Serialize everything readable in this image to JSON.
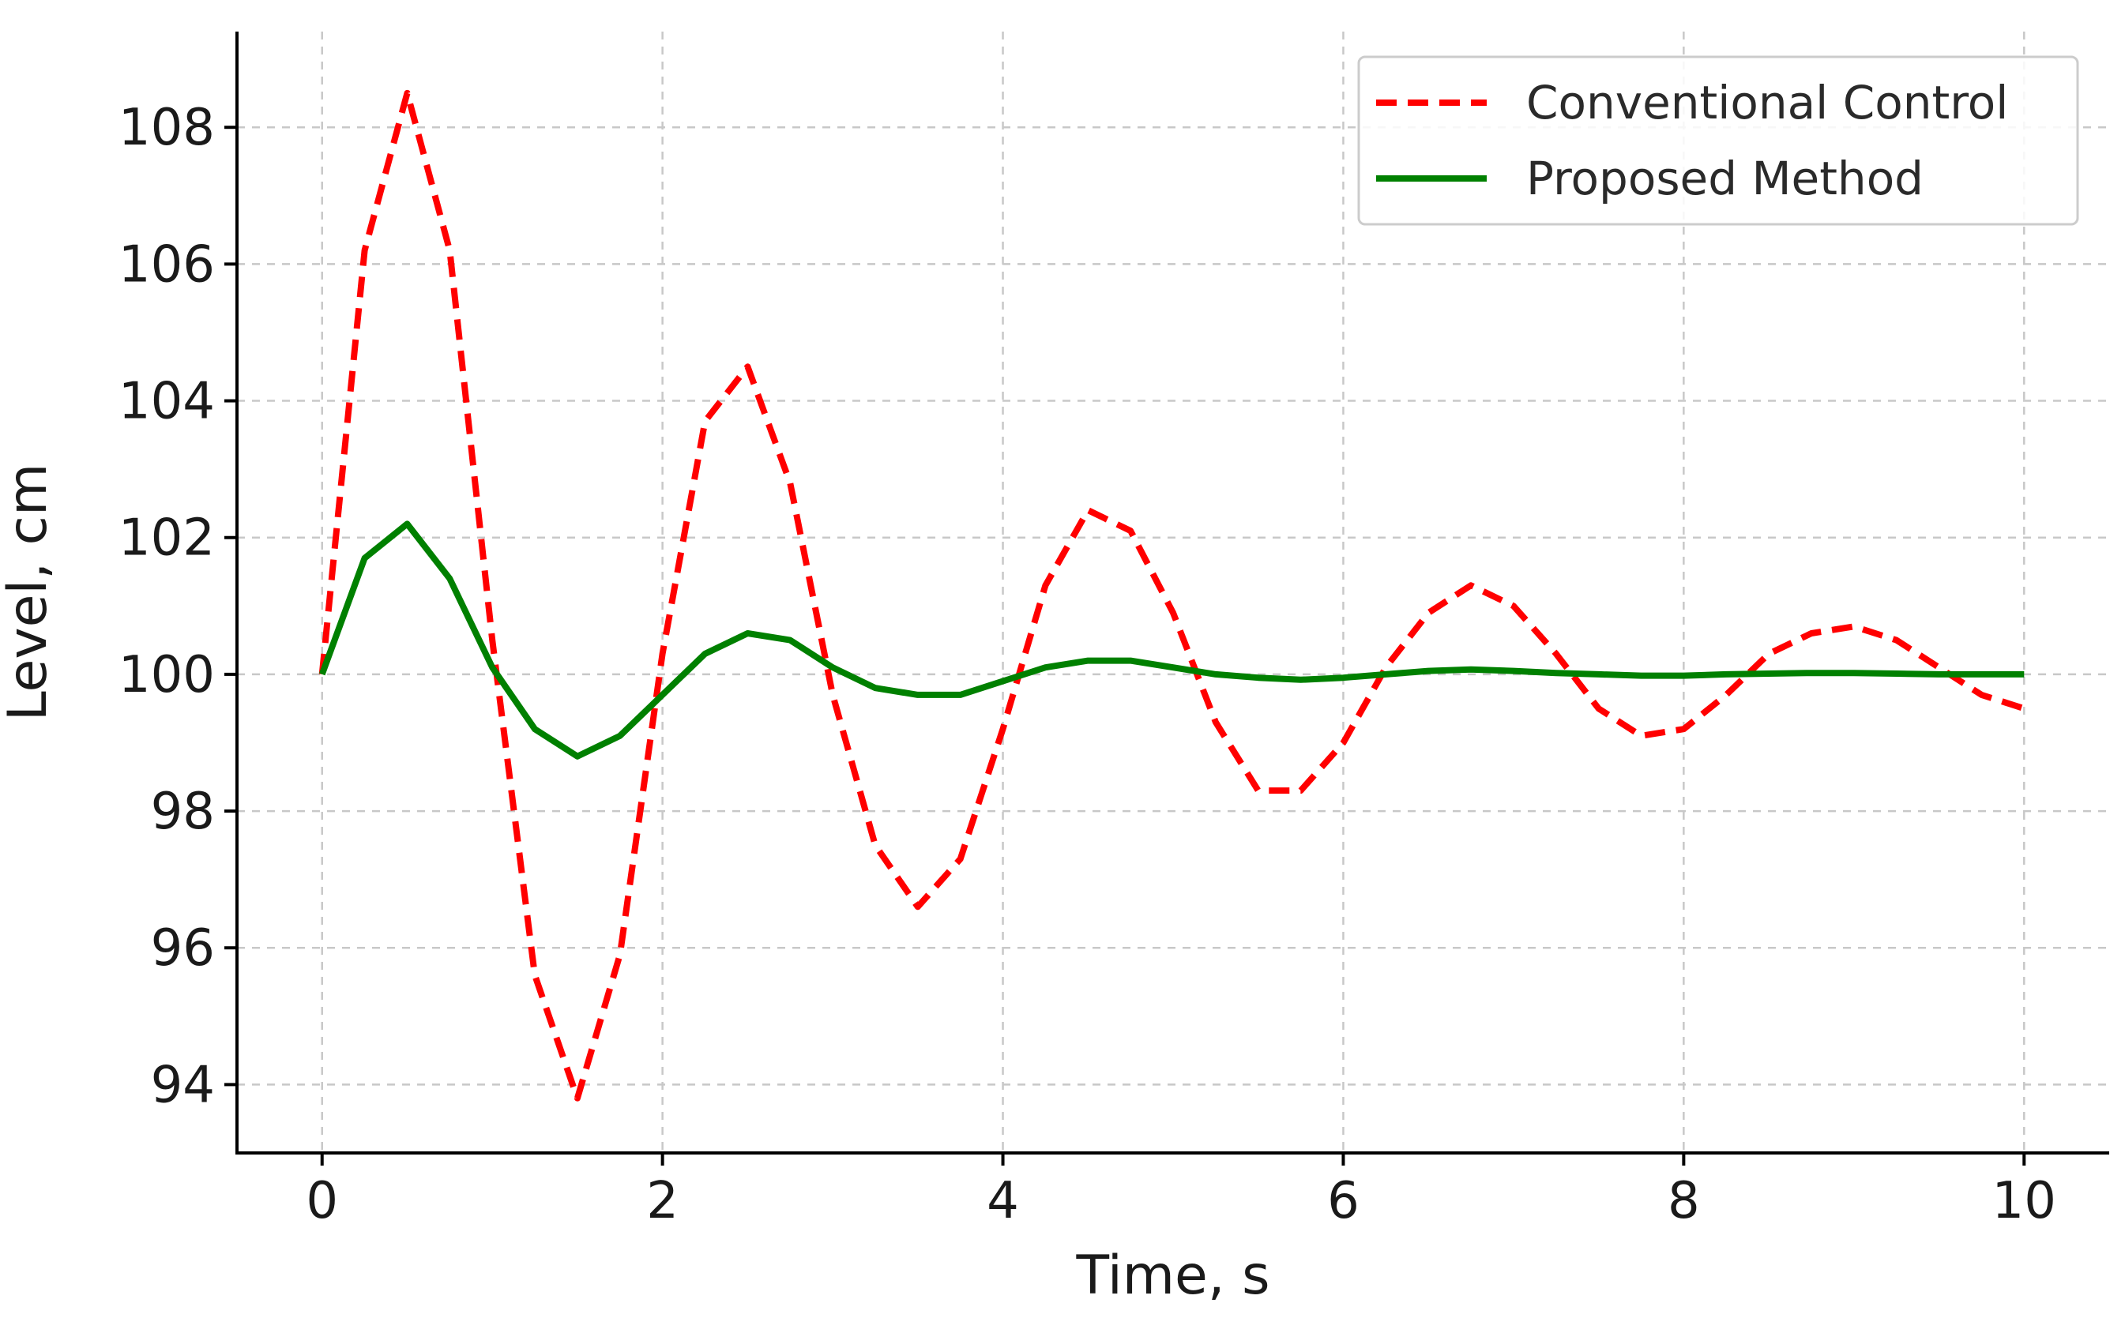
{
  "chart_data": {
    "type": "line",
    "xlabel": "Time, s",
    "ylabel": "Level, cm",
    "xlim": [
      -0.5,
      10.5
    ],
    "ylim": [
      93.0,
      109.4
    ],
    "xticks": [
      0,
      2,
      4,
      6,
      8,
      10
    ],
    "yticks": [
      94,
      96,
      98,
      100,
      102,
      104,
      106,
      108
    ],
    "xtick_labels": [
      "0",
      "2",
      "4",
      "6",
      "8",
      "10"
    ],
    "ytick_labels": [
      "94",
      "96",
      "98",
      "100",
      "102",
      "104",
      "106",
      "108"
    ],
    "grid": true,
    "legend_position": "top-right",
    "x": [
      0,
      0.25,
      0.5,
      0.75,
      1.0,
      1.25,
      1.5,
      1.75,
      2.0,
      2.25,
      2.5,
      2.75,
      3.0,
      3.25,
      3.5,
      3.75,
      4.0,
      4.25,
      4.5,
      4.75,
      5.0,
      5.25,
      5.5,
      5.75,
      6.0,
      6.25,
      6.5,
      6.75,
      7.0,
      7.25,
      7.5,
      7.75,
      8.0,
      8.25,
      8.5,
      8.75,
      9.0,
      9.25,
      9.5,
      9.75,
      10.0
    ],
    "series": [
      {
        "name": "Conventional Control",
        "color": "#ff0000",
        "style": "dashed",
        "values": [
          100.0,
          106.2,
          108.5,
          106.2,
          100.5,
          95.6,
          93.8,
          95.9,
          100.3,
          103.7,
          104.5,
          102.8,
          99.7,
          97.5,
          96.6,
          97.3,
          99.2,
          101.3,
          102.4,
          102.1,
          100.9,
          99.3,
          98.3,
          98.3,
          99.0,
          100.1,
          100.9,
          101.3,
          101.0,
          100.3,
          99.5,
          99.1,
          99.2,
          99.7,
          100.3,
          100.6,
          100.7,
          100.5,
          100.1,
          99.7,
          99.5
        ]
      },
      {
        "name": "Proposed Method",
        "color": "#008000",
        "style": "solid",
        "values": [
          100.0,
          101.7,
          102.2,
          101.4,
          100.1,
          99.2,
          98.8,
          99.1,
          99.7,
          100.3,
          100.6,
          100.5,
          100.1,
          99.8,
          99.7,
          99.7,
          99.9,
          100.1,
          100.2,
          100.2,
          100.1,
          100.0,
          99.95,
          99.92,
          99.95,
          100.0,
          100.05,
          100.07,
          100.05,
          100.02,
          100.0,
          99.98,
          99.98,
          100.0,
          100.01,
          100.02,
          100.02,
          100.01,
          100.0,
          100.0,
          100.0
        ]
      }
    ]
  }
}
